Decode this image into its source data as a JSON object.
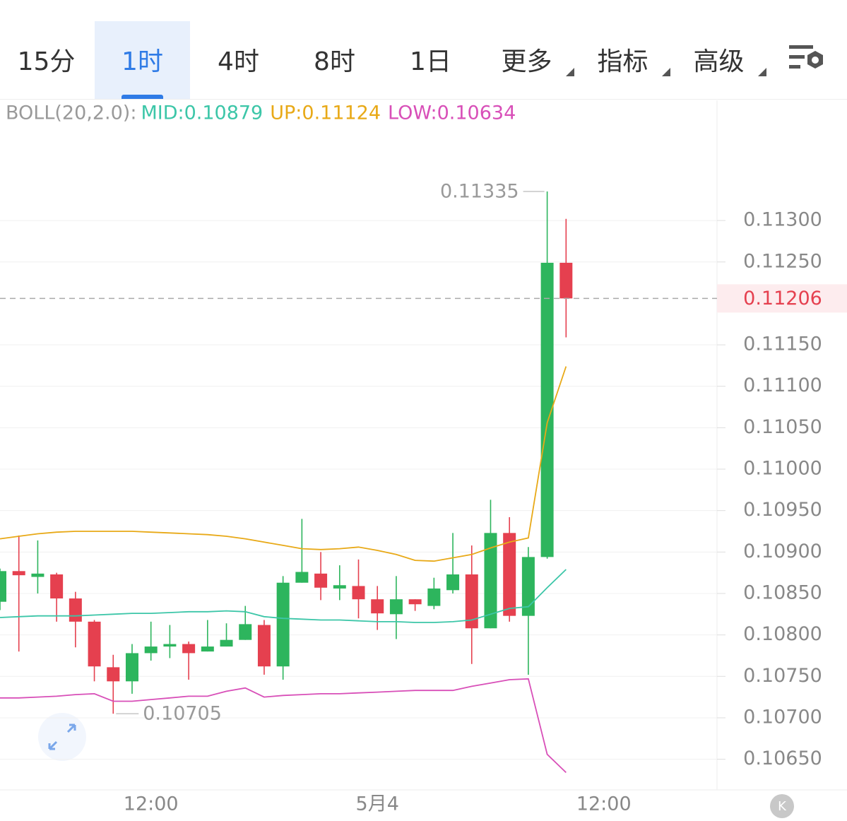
{
  "toolbar": {
    "tabs": [
      {
        "label": "15分"
      },
      {
        "label": "1时",
        "selected": true
      },
      {
        "label": "4时"
      },
      {
        "label": "8时"
      },
      {
        "label": "1日"
      },
      {
        "label": "更多",
        "dropdown": true
      },
      {
        "label": "指标",
        "dropdown": true
      },
      {
        "label": "高级",
        "dropdown": true
      }
    ]
  },
  "chart_data": {
    "type": "candlestick",
    "indicator_label": "BOLL(20,2.0):",
    "x": [
      0,
      1,
      2,
      3,
      4,
      5,
      6,
      7,
      8,
      9,
      10,
      11,
      12,
      13,
      14,
      15,
      16,
      17,
      18,
      19,
      20,
      21,
      22,
      23,
      24,
      25,
      26,
      27,
      28,
      29,
      30
    ],
    "open": [
      0.1084,
      0.10877,
      0.1087,
      0.10873,
      0.10844,
      0.10816,
      0.10761,
      0.10744,
      0.10778,
      0.10786,
      0.10789,
      0.1078,
      0.10786,
      0.10794,
      0.10812,
      0.10762,
      0.10863,
      0.10874,
      0.10856,
      0.10859,
      0.10843,
      0.10825,
      0.10843,
      0.10835,
      0.10854,
      0.10873,
      0.10808,
      0.10923,
      0.10823,
      0.10894,
      0.11249
    ],
    "high": [
      0.1088,
      0.1092,
      0.10914,
      0.10875,
      0.10852,
      0.10818,
      0.10776,
      0.10789,
      0.10816,
      0.10812,
      0.10792,
      0.10818,
      0.10814,
      0.10835,
      0.10818,
      0.10871,
      0.1094,
      0.109,
      0.10884,
      0.10891,
      0.10859,
      0.10871,
      0.10843,
      0.10869,
      0.10923,
      0.10908,
      0.10963,
      0.10942,
      0.10906,
      0.11335,
      0.11302
    ],
    "low": [
      0.1083,
      0.1078,
      0.1085,
      0.10816,
      0.10785,
      0.10744,
      0.10705,
      0.10729,
      0.10769,
      0.10772,
      0.10746,
      0.1078,
      0.10786,
      0.10794,
      0.10752,
      0.10746,
      0.10863,
      0.10842,
      0.10842,
      0.1082,
      0.10806,
      0.10795,
      0.10829,
      0.10831,
      0.1085,
      0.10765,
      0.10808,
      0.10816,
      0.10752,
      0.10892,
      0.11159
    ],
    "close": [
      0.10877,
      0.10872,
      0.10874,
      0.10844,
      0.10816,
      0.10762,
      0.10744,
      0.10778,
      0.10786,
      0.10789,
      0.10778,
      0.10786,
      0.10794,
      0.10813,
      0.10762,
      0.10863,
      0.10876,
      0.10857,
      0.1086,
      0.10843,
      0.10826,
      0.10843,
      0.10837,
      0.10856,
      0.10873,
      0.10808,
      0.10923,
      0.10823,
      0.10894,
      0.11249,
      0.11206
    ],
    "up_color": "#2db55d",
    "down_color": "#e5404f",
    "series": [
      {
        "name": "MID:0.10879",
        "color": "#3cc6a8",
        "values": [
          0.10821,
          0.10822,
          0.10823,
          0.10823,
          0.10823,
          0.10824,
          0.10825,
          0.10826,
          0.10826,
          0.10827,
          0.10828,
          0.10828,
          0.10829,
          0.10828,
          0.10822,
          0.1082,
          0.10819,
          0.10818,
          0.10818,
          0.10817,
          0.10816,
          0.10816,
          0.10815,
          0.10815,
          0.10816,
          0.10818,
          0.10825,
          0.10832,
          0.10834,
          0.10857,
          0.10879
        ]
      },
      {
        "name": "UP:0.11124",
        "color": "#e8a917",
        "values": [
          0.10916,
          0.10919,
          0.10922,
          0.10924,
          0.10925,
          0.10925,
          0.10925,
          0.10925,
          0.10924,
          0.10923,
          0.10922,
          0.10921,
          0.10919,
          0.10916,
          0.10912,
          0.10908,
          0.10904,
          0.10903,
          0.10904,
          0.10906,
          0.10902,
          0.10897,
          0.1089,
          0.10889,
          0.10893,
          0.10897,
          0.10905,
          0.10912,
          0.10917,
          0.11056,
          0.11124
        ]
      },
      {
        "name": "LOW:0.10634",
        "color": "#d84fb8",
        "values": [
          0.10724,
          0.10724,
          0.10725,
          0.10726,
          0.10728,
          0.10729,
          0.1072,
          0.1072,
          0.10722,
          0.10724,
          0.10726,
          0.10726,
          0.10732,
          0.10736,
          0.10725,
          0.10727,
          0.10728,
          0.10729,
          0.10729,
          0.1073,
          0.10731,
          0.10732,
          0.10733,
          0.10733,
          0.10733,
          0.10738,
          0.10742,
          0.10746,
          0.10747,
          0.10656,
          0.10634
        ]
      }
    ],
    "last_price": 0.11206,
    "xlim": [
      0,
      38
    ],
    "ylim": [
      0.10613,
      0.11445
    ],
    "yticks": [
      {
        "value": 0.113,
        "label": "0.11300"
      },
      {
        "value": 0.1125,
        "label": "0.11250"
      },
      {
        "value": 0.1115,
        "label": "0.11150"
      },
      {
        "value": 0.111,
        "label": "0.11100"
      },
      {
        "value": 0.1105,
        "label": "0.11050"
      },
      {
        "value": 0.11,
        "label": "0.11000"
      },
      {
        "value": 0.1095,
        "label": "0.10950"
      },
      {
        "value": 0.109,
        "label": "0.10900"
      },
      {
        "value": 0.1085,
        "label": "0.10850"
      },
      {
        "value": 0.108,
        "label": "0.10800"
      },
      {
        "value": 0.1075,
        "label": "0.10750"
      },
      {
        "value": 0.107,
        "label": "0.10700"
      },
      {
        "value": 0.1065,
        "label": "0.10650"
      }
    ],
    "xticks": [
      {
        "value": 8,
        "label": "12:00"
      },
      {
        "value": 20,
        "label": "5月4"
      },
      {
        "value": 32,
        "label": "12:00"
      }
    ],
    "grid": true
  },
  "footer": {
    "button": "K"
  }
}
